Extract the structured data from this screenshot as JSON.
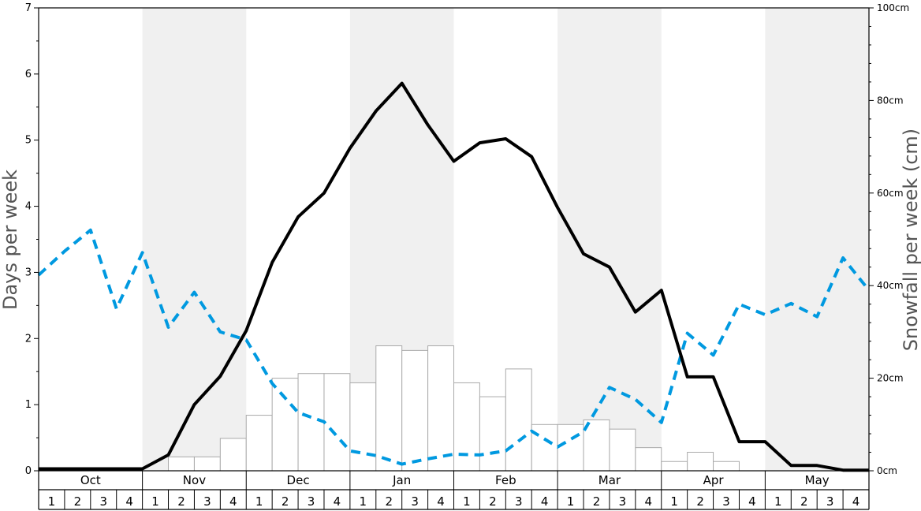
{
  "chart_data": {
    "type": "bar+line",
    "ylabel_left": "Days per week",
    "ylabel_right": "Snowfall per week (cm)",
    "ylim_left": [
      0,
      7
    ],
    "ylim_right": [
      0,
      100
    ],
    "left_ticks": [
      "0",
      "1",
      "2",
      "3",
      "4",
      "5",
      "6",
      "7"
    ],
    "right_ticks": [
      "0cm",
      "20cm",
      "40cm",
      "60cm",
      "80cm",
      "100cm"
    ],
    "months": [
      "Oct",
      "Nov",
      "Dec",
      "Jan",
      "Feb",
      "Mar",
      "Apr",
      "May"
    ],
    "weeks": [
      "1",
      "2",
      "3",
      "4"
    ],
    "snowfall_cm": [
      0,
      0,
      0,
      0,
      0,
      3,
      3,
      7,
      12,
      20,
      21,
      21,
      19,
      27,
      26,
      27,
      19,
      16,
      22,
      10,
      10,
      11,
      9,
      5,
      2,
      4,
      2,
      0,
      0,
      0,
      0,
      0
    ],
    "solid_line_days": [
      0.03,
      0.03,
      0.03,
      0.03,
      0.03,
      0.24,
      1.0,
      1.43,
      2.12,
      3.15,
      3.84,
      4.2,
      4.88,
      5.44,
      5.86,
      5.23,
      4.68,
      4.96,
      5.02,
      4.75,
      3.98,
      3.28,
      3.08,
      2.4,
      2.73,
      1.42,
      1.42,
      0.44,
      0.44,
      0.08,
      0.08,
      0.01,
      0.01
    ],
    "dashed_line_days": [
      2.96,
      3.32,
      3.64,
      2.45,
      3.3,
      2.17,
      2.7,
      2.1,
      1.98,
      1.32,
      0.88,
      0.74,
      0.3,
      0.23,
      0.1,
      0.18,
      0.25,
      0.24,
      0.3,
      0.6,
      0.36,
      0.59,
      1.26,
      1.08,
      0.73,
      2.08,
      1.75,
      2.52,
      2.36,
      2.53,
      2.33,
      3.22,
      2.73
    ],
    "colors": {
      "solid_line": "#000000",
      "dashed_line": "#0099e0",
      "bar_fill": "#ffffff",
      "bar_stroke": "#aaaaaa",
      "month_band": "#f0f0f0"
    }
  }
}
